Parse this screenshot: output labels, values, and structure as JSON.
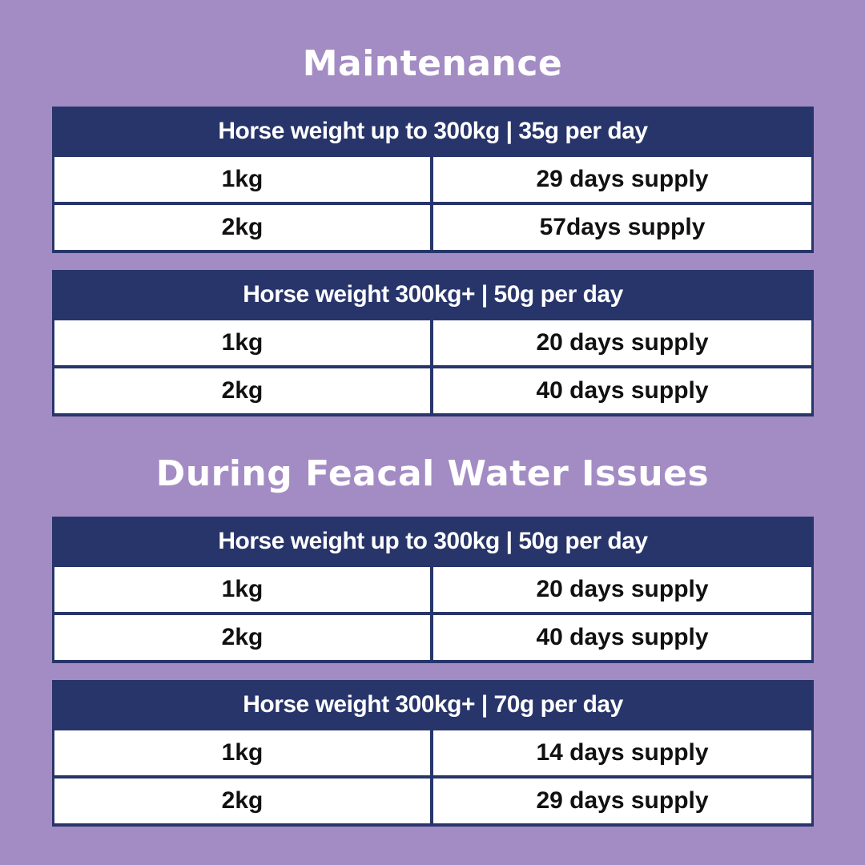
{
  "sections": [
    {
      "title": "Maintenance",
      "tables": [
        {
          "header": "Horse weight up to 300kg | 35g per day",
          "rows": [
            {
              "size": "1kg",
              "supply": "29 days supply"
            },
            {
              "size": "2kg",
              "supply": "57days supply"
            }
          ]
        },
        {
          "header": "Horse weight 300kg+ | 50g per day",
          "rows": [
            {
              "size": "1kg",
              "supply": "20 days supply"
            },
            {
              "size": "2kg",
              "supply": "40 days supply"
            }
          ]
        }
      ]
    },
    {
      "title": "During Feacal Water Issues",
      "tables": [
        {
          "header": "Horse weight up to 300kg | 50g per day",
          "rows": [
            {
              "size": "1kg",
              "supply": "20 days supply"
            },
            {
              "size": "2kg",
              "supply": "40 days supply"
            }
          ]
        },
        {
          "header": "Horse weight 300kg+ | 70g per day",
          "rows": [
            {
              "size": "1kg",
              "supply": "14 days supply"
            },
            {
              "size": "2kg",
              "supply": "29 days supply"
            }
          ]
        }
      ]
    }
  ],
  "colors": {
    "background": "#a38cc4",
    "header_navy": "#28356b",
    "cell_white": "#ffffff",
    "title_text": "#ffffff"
  }
}
